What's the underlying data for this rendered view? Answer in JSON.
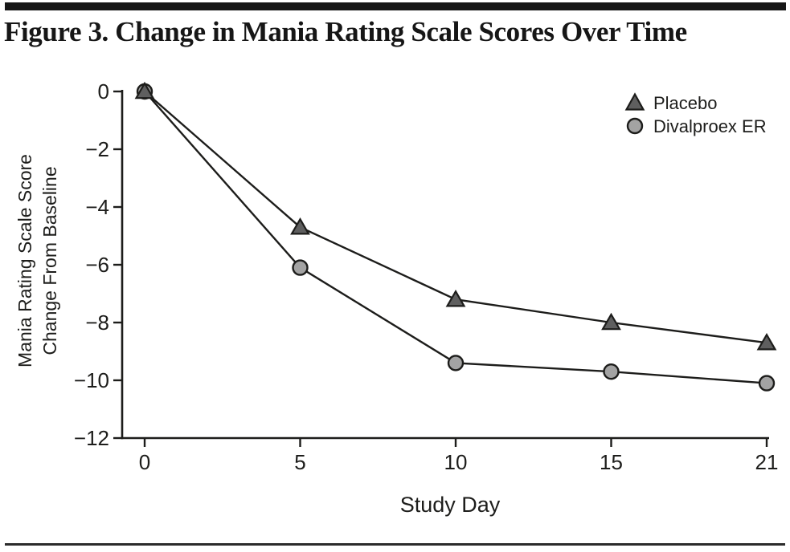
{
  "page": {
    "title": "Figure 3. Change in Mania Rating Scale Scores Over Time"
  },
  "chart_data": {
    "type": "line",
    "title": "Figure 3. Change in Mania Rating Scale Scores Over Time",
    "x": [
      0,
      5,
      10,
      15,
      21
    ],
    "x_tick_labels": [
      "0",
      "5",
      "10",
      "15",
      "21"
    ],
    "x_equal_tick_spacing": true,
    "xlabel": "Study Day",
    "ylabel_line1": "Mania Rating Scale Score",
    "ylabel_line2": "Change From Baseline",
    "ylim": [
      -12,
      0
    ],
    "y_ticks": [
      0,
      -2,
      -4,
      -6,
      -8,
      -10,
      -12
    ],
    "y_tick_labels": [
      "0",
      "−2",
      "−4",
      "−6",
      "−8",
      "−10",
      "−12"
    ],
    "grid": false,
    "legend_position": "top-right",
    "ink_color": "#1d1d1b",
    "series": [
      {
        "name": "Placebo",
        "marker": "triangle",
        "marker_fill": "#5f5f5f",
        "values": [
          0,
          -4.7,
          -7.2,
          -8.0,
          -8.7
        ]
      },
      {
        "name": "Divalproex ER",
        "marker": "circle",
        "marker_fill": "#a3a3a3",
        "values": [
          0,
          -6.1,
          -9.4,
          -9.7,
          -10.1
        ]
      }
    ]
  }
}
